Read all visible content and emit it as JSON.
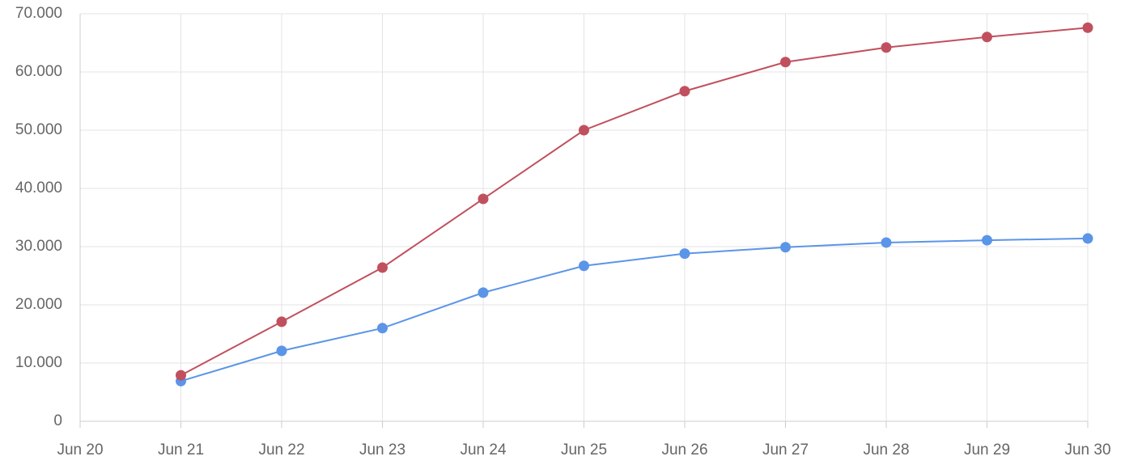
{
  "chart_data": {
    "type": "line",
    "categories": [
      "Jun 20",
      "Jun 21",
      "Jun 22",
      "Jun 23",
      "Jun 24",
      "Jun 25",
      "Jun 26",
      "Jun 27",
      "Jun 28",
      "Jun 29",
      "Jun 30"
    ],
    "series": [
      {
        "color": "#5b95e8",
        "values": [
          null,
          6900,
          12100,
          16000,
          22100,
          26700,
          28800,
          29900,
          30700,
          31100,
          31400
        ]
      },
      {
        "color": "#c1505e",
        "values": [
          null,
          7900,
          17100,
          26400,
          38200,
          50000,
          56700,
          61700,
          64200,
          66000,
          67600
        ]
      }
    ],
    "ylim": [
      0,
      70000
    ],
    "yticks": [
      0,
      {
        "value": 10000,
        "label": "10.000"
      },
      {
        "value": 20000,
        "label": "20.000"
      },
      {
        "value": 30000,
        "label": "30.000"
      },
      {
        "value": 40000,
        "label": "40.000"
      },
      {
        "value": 50000,
        "label": "50.000"
      },
      {
        "value": 60000,
        "label": "60.000"
      },
      {
        "value": 70000,
        "label": "70.000"
      }
    ],
    "grid": true
  }
}
